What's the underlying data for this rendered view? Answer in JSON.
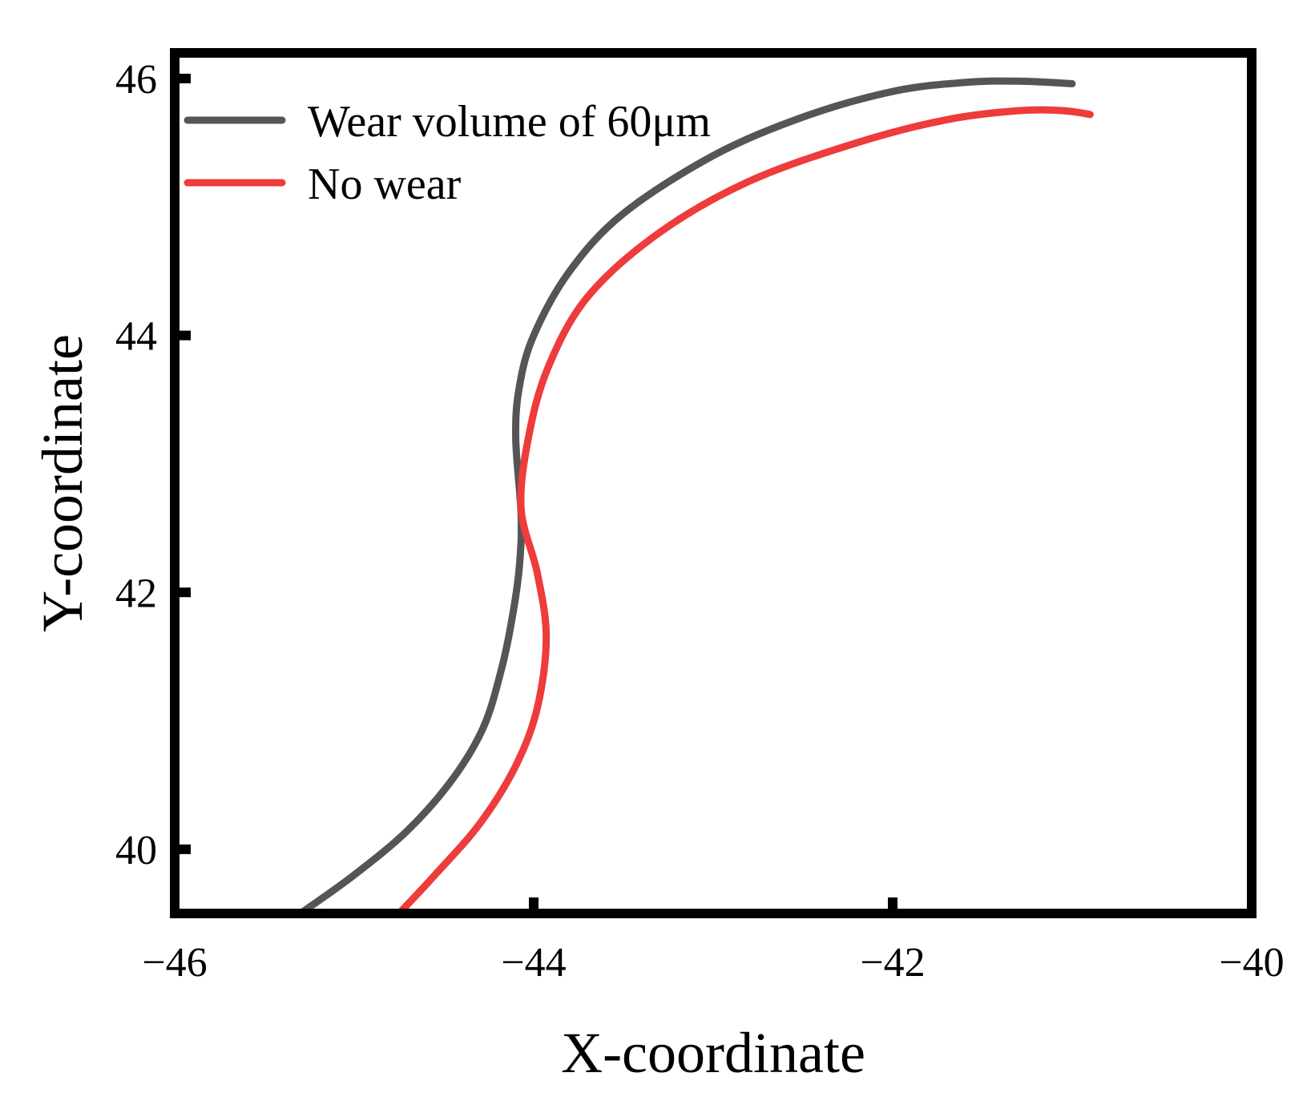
{
  "chart_data": {
    "type": "line",
    "title": "",
    "xlabel": "X-coordinate",
    "ylabel": "Y-coordinate",
    "xlim": [
      -46,
      -40
    ],
    "ylim": [
      39.5,
      46.2
    ],
    "xticks": [
      -46,
      -44,
      -42,
      -40
    ],
    "xtick_labels": [
      "−46",
      "−44",
      "−42",
      "−40"
    ],
    "yticks": [
      40,
      42,
      44,
      46
    ],
    "ytick_labels": [
      "40",
      "42",
      "44",
      "46"
    ],
    "grid": false,
    "legend_position": "top-left",
    "series": [
      {
        "name": "Wear volume of 60μm",
        "color": "#555555",
        "x": [
          -45.3,
          -45.0,
          -44.7,
          -44.45,
          -44.28,
          -44.18,
          -44.12,
          -44.08,
          -44.07,
          -44.1,
          -44.08,
          -44.0,
          -43.8,
          -43.5,
          -43.0,
          -42.5,
          -42.0,
          -41.6,
          -41.3,
          -41.0
        ],
        "y": [
          39.5,
          39.8,
          40.15,
          40.55,
          40.95,
          41.4,
          41.8,
          42.2,
          42.6,
          43.2,
          43.6,
          44.0,
          44.5,
          44.95,
          45.4,
          45.7,
          45.9,
          45.97,
          45.98,
          45.96
        ]
      },
      {
        "name": "No wear",
        "color": "#ee3b3b",
        "x": [
          -44.75,
          -44.55,
          -44.3,
          -44.1,
          -43.98,
          -43.93,
          -43.98,
          -44.07,
          -44.03,
          -43.92,
          -43.7,
          -43.3,
          -42.8,
          -42.2,
          -41.7,
          -41.3,
          -41.05,
          -40.9
        ],
        "y": [
          39.5,
          39.8,
          40.2,
          40.65,
          41.1,
          41.65,
          42.15,
          42.65,
          43.2,
          43.75,
          44.3,
          44.8,
          45.2,
          45.5,
          45.68,
          45.75,
          45.75,
          45.72
        ]
      }
    ]
  }
}
